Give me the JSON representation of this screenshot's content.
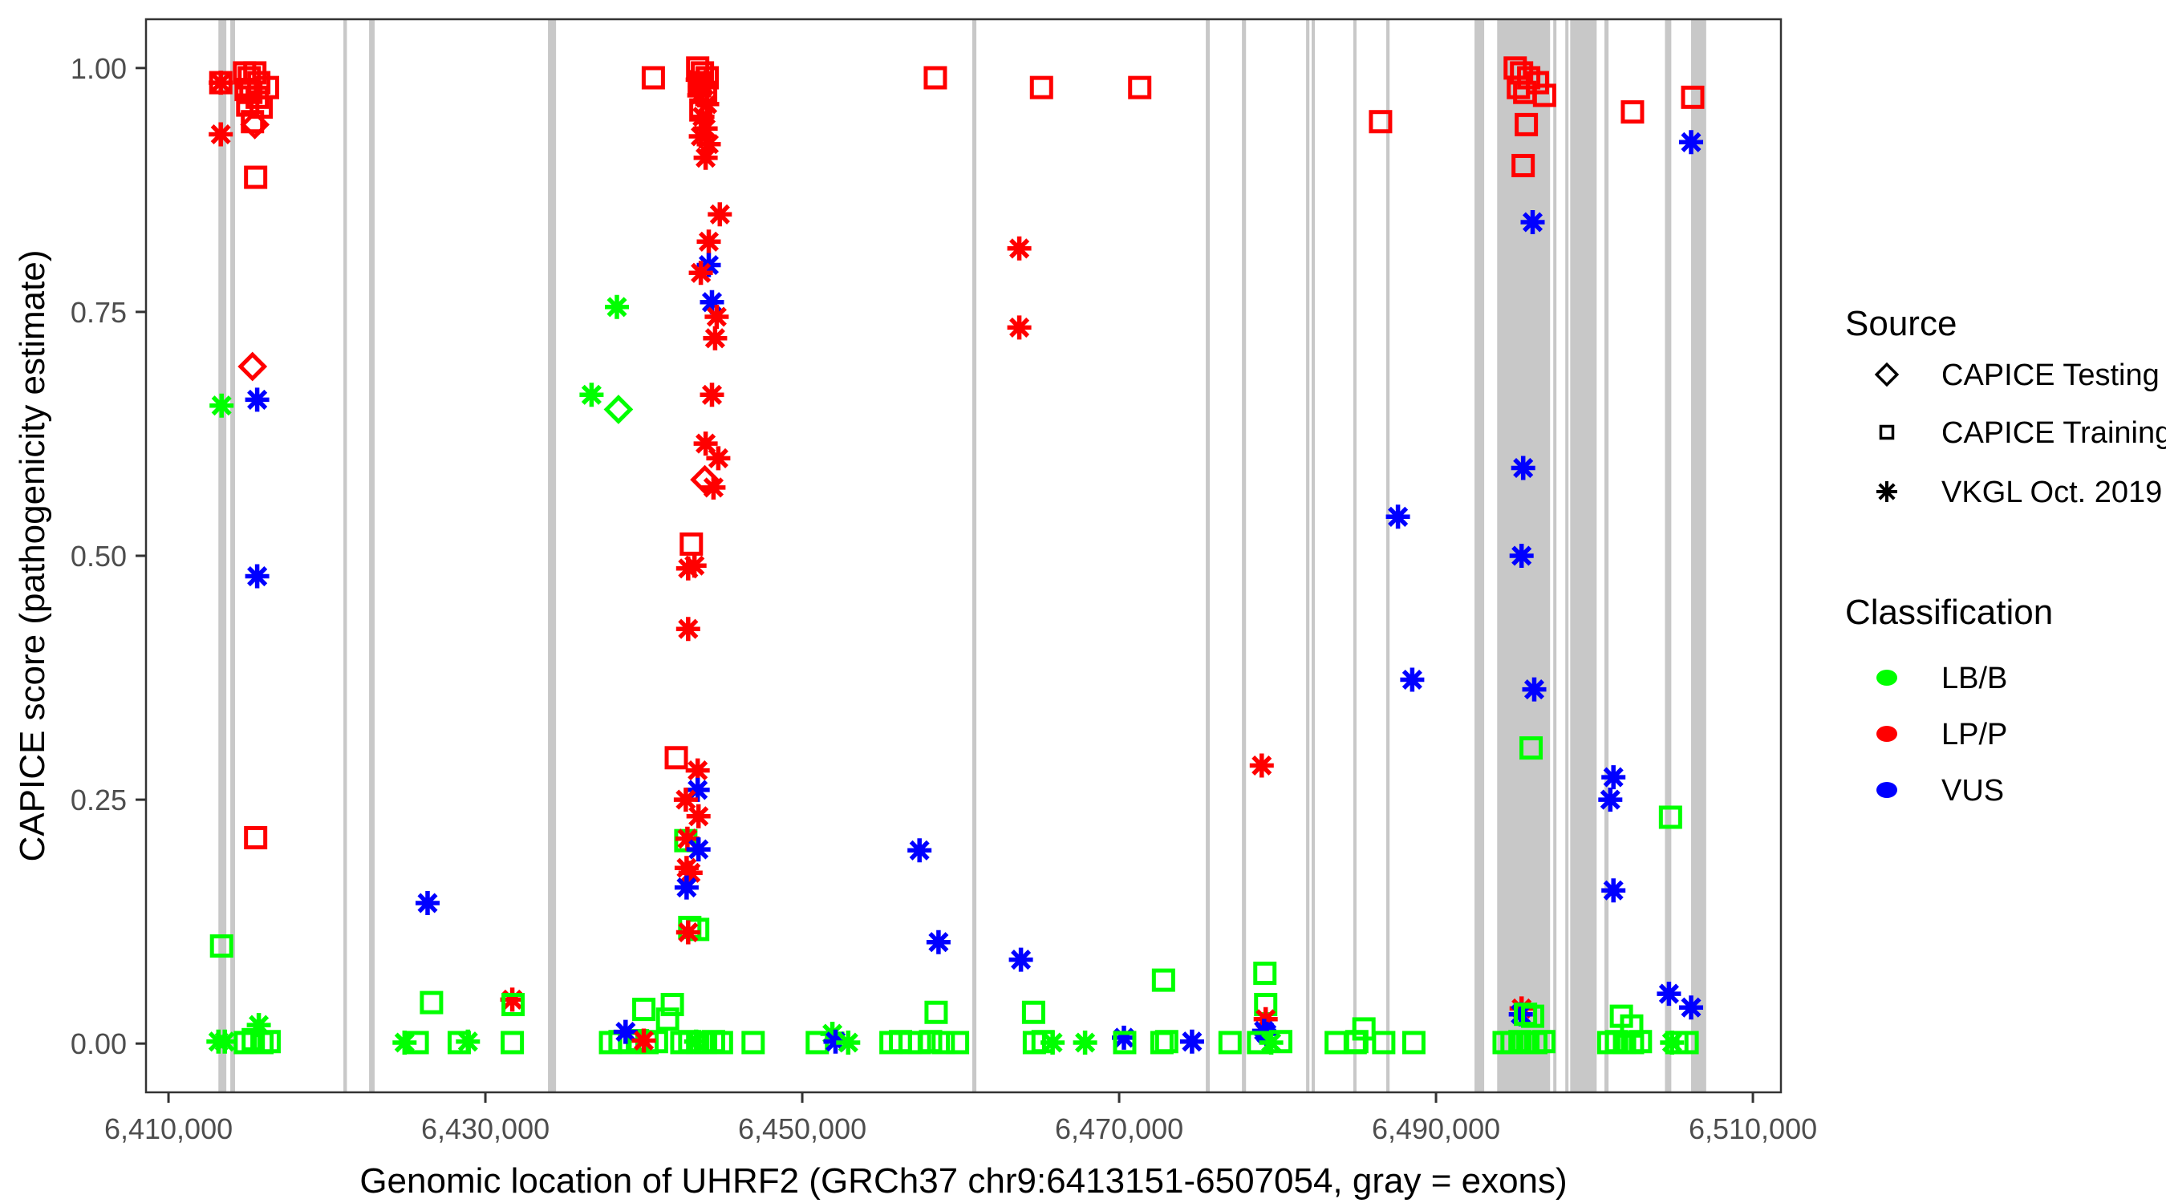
{
  "figure": {
    "background": "#ffffff",
    "panel_border_color": "#333333",
    "tick_color": "#333333",
    "tick_label_color": "#4d4d4d"
  },
  "legend": {
    "source": {
      "title": "Source",
      "items": [
        {
          "shape": "diamond",
          "code": "d",
          "label": "CAPICE Testing"
        },
        {
          "shape": "square",
          "code": "s",
          "label": "CAPICE Training"
        },
        {
          "shape": "asterisk",
          "code": "a",
          "label": "VKGL Oct. 2019"
        }
      ]
    },
    "classification": {
      "title": "Classification",
      "items": [
        {
          "code": "B",
          "label": "LB/B",
          "color": "#00FF00"
        },
        {
          "code": "P",
          "label": "LP/P",
          "color": "#FF0000"
        },
        {
          "code": "V",
          "label": "VUS",
          "color": "#0000FF"
        }
      ]
    }
  },
  "chart_data": {
    "type": "scatter",
    "title": "",
    "xlabel": "Genomic location of UHRF2 (GRCh37 chr9:6413151-6507054, gray = exons)",
    "ylabel": "CAPICE score (pathogenicity estimate)",
    "xlim": [
      6408580,
      6511770
    ],
    "ylim": [
      -0.05,
      1.05
    ],
    "grid": "off",
    "legend_position": "right",
    "x_ticks": [
      {
        "value": 6410000,
        "label": "6,410,000"
      },
      {
        "value": 6430000,
        "label": "6,430,000"
      },
      {
        "value": 6450000,
        "label": "6,450,000"
      },
      {
        "value": 6470000,
        "label": "6,470,000"
      },
      {
        "value": 6490000,
        "label": "6,490,000"
      },
      {
        "value": 6510000,
        "label": "6,510,000"
      }
    ],
    "y_ticks": [
      {
        "value": 0.0,
        "label": "0.00"
      },
      {
        "value": 0.25,
        "label": "0.25"
      },
      {
        "value": 0.5,
        "label": "0.50"
      },
      {
        "value": 0.75,
        "label": "0.75"
      },
      {
        "value": 1.0,
        "label": "1.00"
      }
    ],
    "exon_color": "#C8C8C8",
    "exons": [
      [
        6413150,
        6413650
      ],
      [
        6413900,
        6414200
      ],
      [
        6421040,
        6421260
      ],
      [
        6422660,
        6423010
      ],
      [
        6433950,
        6434460
      ],
      [
        6460730,
        6460990
      ],
      [
        6475470,
        6475720
      ],
      [
        6477750,
        6478010
      ],
      [
        6481800,
        6482010
      ],
      [
        6482150,
        6482310
      ],
      [
        6484780,
        6484940
      ],
      [
        6486860,
        6487070
      ],
      [
        6492430,
        6493040
      ],
      [
        6493860,
        6497200
      ],
      [
        6497400,
        6497560
      ],
      [
        6498160,
        6498320
      ],
      [
        6498470,
        6500140
      ],
      [
        6500630,
        6500890
      ],
      [
        6504450,
        6504850
      ],
      [
        6506100,
        6507054
      ]
    ],
    "class_colors": {
      "B": "#00FF00",
      "P": "#FF0000",
      "V": "#0000FF"
    },
    "class_labels": {
      "B": "LB/B",
      "P": "LP/P",
      "V": "VUS"
    },
    "source_labels": {
      "d": "CAPICE Testing",
      "s": "CAPICE Training",
      "a": "VKGL Oct. 2019"
    },
    "points_columns": [
      "genomic_position",
      "capice_score",
      "source",
      "classification"
    ],
    "points": [
      [
        6413300,
        0.985,
        "s",
        "P"
      ],
      [
        6413300,
        0.985,
        "a",
        "P"
      ],
      [
        6413300,
        0.932,
        "a",
        "P"
      ],
      [
        6414800,
        0.995,
        "s",
        "P"
      ],
      [
        6415100,
        0.99,
        "s",
        "P"
      ],
      [
        6415450,
        0.995,
        "s",
        "P"
      ],
      [
        6415700,
        0.985,
        "s",
        "P"
      ],
      [
        6415200,
        0.975,
        "s",
        "P"
      ],
      [
        6415600,
        0.97,
        "s",
        "P"
      ],
      [
        6415000,
        0.962,
        "s",
        "P"
      ],
      [
        6415850,
        0.96,
        "s",
        "P"
      ],
      [
        6416250,
        0.98,
        "s",
        "P"
      ],
      [
        6414900,
        0.978,
        "s",
        "P"
      ],
      [
        6415300,
        0.945,
        "s",
        "P"
      ],
      [
        6415450,
        0.942,
        "d",
        "P"
      ],
      [
        6415500,
        0.888,
        "s",
        "P"
      ],
      [
        6415300,
        0.694,
        "d",
        "P"
      ],
      [
        6415500,
        0.211,
        "s",
        "P"
      ],
      [
        6415600,
        0.66,
        "a",
        "V"
      ],
      [
        6415600,
        0.479,
        "a",
        "V"
      ],
      [
        6413350,
        0.654,
        "a",
        "B"
      ],
      [
        6413350,
        0.1,
        "s",
        "B"
      ],
      [
        6415700,
        0.019,
        "a",
        "B"
      ],
      [
        6413150,
        0.002,
        "a",
        "B"
      ],
      [
        6413550,
        0.002,
        "a",
        "B"
      ],
      [
        6414850,
        0.001,
        "s",
        "B"
      ],
      [
        6415350,
        0.004,
        "s",
        "B"
      ],
      [
        6415900,
        0.001,
        "s",
        "B"
      ],
      [
        6416350,
        0.002,
        "s",
        "B"
      ],
      [
        6424900,
        0.001,
        "a",
        "B"
      ],
      [
        6425700,
        0.001,
        "s",
        "B"
      ],
      [
        6426350,
        0.144,
        "a",
        "V"
      ],
      [
        6426600,
        0.042,
        "s",
        "B"
      ],
      [
        6428350,
        0.001,
        "s",
        "B"
      ],
      [
        6428900,
        0.002,
        "a",
        "B"
      ],
      [
        6431700,
        0.045,
        "a",
        "P"
      ],
      [
        6431750,
        0.04,
        "s",
        "B"
      ],
      [
        6431700,
        0.001,
        "s",
        "B"
      ],
      [
        6437900,
        0.001,
        "s",
        "B"
      ],
      [
        6438500,
        0.002,
        "s",
        "B"
      ],
      [
        6439100,
        0.001,
        "s",
        "B"
      ],
      [
        6439600,
        0.003,
        "s",
        "B"
      ],
      [
        6440200,
        0.001,
        "s",
        "B"
      ],
      [
        6440800,
        0.002,
        "s",
        "B"
      ],
      [
        6440000,
        0.035,
        "s",
        "B"
      ],
      [
        6441500,
        0.025,
        "s",
        "B"
      ],
      [
        6441800,
        0.04,
        "s",
        "B"
      ],
      [
        6438850,
        0.012,
        "a",
        "V"
      ],
      [
        6440000,
        0.003,
        "a",
        "P"
      ],
      [
        6442400,
        0.001,
        "s",
        "B"
      ],
      [
        6442900,
        0.002,
        "s",
        "B"
      ],
      [
        6443400,
        0.001,
        "s",
        "B"
      ],
      [
        6443900,
        0.001,
        "s",
        "B"
      ],
      [
        6444400,
        0.002,
        "s",
        "B"
      ],
      [
        6444900,
        0.001,
        "s",
        "B"
      ],
      [
        6443300,
        0.002,
        "a",
        "B"
      ],
      [
        6442900,
        0.119,
        "s",
        "B"
      ],
      [
        6436700,
        0.665,
        "a",
        "B"
      ],
      [
        6438300,
        0.755,
        "a",
        "B"
      ],
      [
        6438400,
        0.65,
        "d",
        "B"
      ],
      [
        6440600,
        0.99,
        "s",
        "P"
      ],
      [
        6443400,
        1.0,
        "s",
        "P"
      ],
      [
        6443700,
        0.995,
        "s",
        "P"
      ],
      [
        6444000,
        0.99,
        "s",
        "P"
      ],
      [
        6443500,
        0.985,
        "s",
        "P"
      ],
      [
        6443900,
        0.975,
        "s",
        "P"
      ],
      [
        6443600,
        0.957,
        "s",
        "P"
      ],
      [
        6443400,
        0.988,
        "a",
        "P"
      ],
      [
        6443800,
        0.982,
        "a",
        "P"
      ],
      [
        6443500,
        0.972,
        "a",
        "P"
      ],
      [
        6444000,
        0.963,
        "a",
        "P"
      ],
      [
        6443700,
        0.95,
        "a",
        "P"
      ],
      [
        6443900,
        0.938,
        "a",
        "P"
      ],
      [
        6443600,
        0.93,
        "a",
        "P"
      ],
      [
        6444100,
        0.922,
        "a",
        "P"
      ],
      [
        6443900,
        0.908,
        "a",
        "P"
      ],
      [
        6444800,
        0.85,
        "a",
        "P"
      ],
      [
        6444100,
        0.822,
        "a",
        "P"
      ],
      [
        6444100,
        0.798,
        "a",
        "V"
      ],
      [
        6443600,
        0.79,
        "a",
        "P"
      ],
      [
        6444300,
        0.76,
        "a",
        "V"
      ],
      [
        6444600,
        0.745,
        "a",
        "P"
      ],
      [
        6444500,
        0.723,
        "a",
        "P"
      ],
      [
        6444300,
        0.665,
        "a",
        "P"
      ],
      [
        6443900,
        0.615,
        "a",
        "P"
      ],
      [
        6444700,
        0.6,
        "a",
        "P"
      ],
      [
        6443850,
        0.578,
        "d",
        "P"
      ],
      [
        6444400,
        0.57,
        "a",
        "P"
      ],
      [
        6443000,
        0.512,
        "s",
        "P"
      ],
      [
        6443200,
        0.49,
        "a",
        "P"
      ],
      [
        6442800,
        0.487,
        "a",
        "P"
      ],
      [
        6442800,
        0.425,
        "a",
        "P"
      ],
      [
        6442050,
        0.293,
        "s",
        "P"
      ],
      [
        6443400,
        0.28,
        "a",
        "P"
      ],
      [
        6443400,
        0.26,
        "a",
        "V"
      ],
      [
        6442650,
        0.25,
        "a",
        "P"
      ],
      [
        6443450,
        0.233,
        "a",
        "P"
      ],
      [
        6442650,
        0.208,
        "s",
        "B"
      ],
      [
        6442750,
        0.21,
        "a",
        "P"
      ],
      [
        6443450,
        0.199,
        "a",
        "V"
      ],
      [
        6442700,
        0.18,
        "a",
        "P"
      ],
      [
        6442950,
        0.175,
        "a",
        "P"
      ],
      [
        6442700,
        0.16,
        "a",
        "V"
      ],
      [
        6443400,
        0.117,
        "s",
        "B"
      ],
      [
        6442800,
        0.114,
        "a",
        "P"
      ],
      [
        6446900,
        0.001,
        "s",
        "B"
      ],
      [
        6450950,
        0.001,
        "s",
        "B"
      ],
      [
        6451900,
        0.01,
        "a",
        "B"
      ],
      [
        6452100,
        0.002,
        "a",
        "V"
      ],
      [
        6452900,
        0.001,
        "a",
        "B"
      ],
      [
        6455600,
        0.001,
        "s",
        "B"
      ],
      [
        6456200,
        0.002,
        "s",
        "B"
      ],
      [
        6456800,
        0.001,
        "s",
        "B"
      ],
      [
        6457400,
        0.001,
        "s",
        "B"
      ],
      [
        6458100,
        0.002,
        "s",
        "B"
      ],
      [
        6458900,
        0.001,
        "s",
        "B"
      ],
      [
        6458450,
        0.032,
        "s",
        "B"
      ],
      [
        6459800,
        0.001,
        "s",
        "B"
      ],
      [
        6458400,
        0.99,
        "s",
        "P"
      ],
      [
        6457400,
        0.198,
        "a",
        "V"
      ],
      [
        6458600,
        0.104,
        "a",
        "V"
      ],
      [
        6465100,
        0.98,
        "s",
        "P"
      ],
      [
        6463700,
        0.815,
        "a",
        "P"
      ],
      [
        6463700,
        0.734,
        "a",
        "P"
      ],
      [
        6463800,
        0.086,
        "a",
        "V"
      ],
      [
        6464600,
        0.032,
        "s",
        "B"
      ],
      [
        6464650,
        0.001,
        "s",
        "B"
      ],
      [
        6465200,
        0.002,
        "s",
        "B"
      ],
      [
        6465800,
        0.001,
        "a",
        "B"
      ],
      [
        6467850,
        0.001,
        "a",
        "B"
      ],
      [
        6470300,
        0.006,
        "a",
        "V"
      ],
      [
        6470350,
        0.001,
        "s",
        "B"
      ],
      [
        6471300,
        0.98,
        "s",
        "P"
      ],
      [
        6472700,
        0.001,
        "s",
        "B"
      ],
      [
        6473000,
        0.002,
        "s",
        "B"
      ],
      [
        6472800,
        0.065,
        "s",
        "B"
      ],
      [
        6474600,
        0.002,
        "a",
        "V"
      ],
      [
        6477000,
        0.001,
        "s",
        "B"
      ],
      [
        6479000,
        0.285,
        "a",
        "P"
      ],
      [
        6479200,
        0.072,
        "s",
        "B"
      ],
      [
        6479250,
        0.04,
        "s",
        "B"
      ],
      [
        6479250,
        0.025,
        "a",
        "P"
      ],
      [
        6479150,
        0.013,
        "a",
        "V"
      ],
      [
        6479300,
        0.01,
        "a",
        "V"
      ],
      [
        6478800,
        0.001,
        "s",
        "B"
      ],
      [
        6479600,
        0.001,
        "a",
        "B"
      ],
      [
        6480200,
        0.002,
        "s",
        "B"
      ],
      [
        6483700,
        0.001,
        "s",
        "B"
      ],
      [
        6484900,
        0.001,
        "s",
        "B"
      ],
      [
        6485000,
        0.002,
        "s",
        "B"
      ],
      [
        6485450,
        0.015,
        "s",
        "B"
      ],
      [
        6486700,
        0.001,
        "s",
        "B"
      ],
      [
        6488600,
        0.001,
        "s",
        "B"
      ],
      [
        6486500,
        0.945,
        "s",
        "P"
      ],
      [
        6487600,
        0.54,
        "a",
        "V"
      ],
      [
        6488500,
        0.373,
        "a",
        "V"
      ],
      [
        6495000,
        1.0,
        "s",
        "P"
      ],
      [
        6495400,
        0.995,
        "s",
        "P"
      ],
      [
        6495850,
        0.99,
        "s",
        "P"
      ],
      [
        6495200,
        0.98,
        "s",
        "P"
      ],
      [
        6495600,
        0.975,
        "s",
        "P"
      ],
      [
        6496400,
        0.985,
        "s",
        "P"
      ],
      [
        6496850,
        0.972,
        "s",
        "P"
      ],
      [
        6495700,
        0.942,
        "s",
        "P"
      ],
      [
        6495500,
        0.9,
        "s",
        "P"
      ],
      [
        6496100,
        0.842,
        "a",
        "V"
      ],
      [
        6495500,
        0.59,
        "a",
        "V"
      ],
      [
        6495400,
        0.5,
        "a",
        "V"
      ],
      [
        6496200,
        0.363,
        "a",
        "V"
      ],
      [
        6496000,
        0.303,
        "s",
        "B"
      ],
      [
        6495400,
        0.036,
        "a",
        "P"
      ],
      [
        6495350,
        0.03,
        "a",
        "V"
      ],
      [
        6495650,
        0.03,
        "s",
        "B"
      ],
      [
        6496100,
        0.028,
        "s",
        "B"
      ],
      [
        6494300,
        0.001,
        "s",
        "B"
      ],
      [
        6494800,
        0.001,
        "s",
        "B"
      ],
      [
        6495300,
        0.002,
        "s",
        "B"
      ],
      [
        6495800,
        0.001,
        "s",
        "B"
      ],
      [
        6496300,
        0.001,
        "s",
        "B"
      ],
      [
        6496800,
        0.002,
        "s",
        "B"
      ],
      [
        6500900,
        0.001,
        "s",
        "B"
      ],
      [
        6501400,
        0.002,
        "s",
        "B"
      ],
      [
        6501900,
        0.001,
        "s",
        "B"
      ],
      [
        6502400,
        0.001,
        "s",
        "B"
      ],
      [
        6502900,
        0.002,
        "s",
        "B"
      ],
      [
        6501700,
        0.028,
        "s",
        "B"
      ],
      [
        6502350,
        0.018,
        "s",
        "B"
      ],
      [
        6501200,
        0.273,
        "a",
        "V"
      ],
      [
        6501000,
        0.25,
        "a",
        "V"
      ],
      [
        6501200,
        0.157,
        "a",
        "V"
      ],
      [
        6502400,
        0.955,
        "s",
        "P"
      ],
      [
        6504800,
        0.232,
        "s",
        "B"
      ],
      [
        6504700,
        0.051,
        "a",
        "V"
      ],
      [
        6506100,
        0.037,
        "a",
        "V"
      ],
      [
        6504900,
        0.001,
        "a",
        "B"
      ],
      [
        6505200,
        0.001,
        "s",
        "B"
      ],
      [
        6505850,
        0.001,
        "s",
        "B"
      ],
      [
        6506200,
        0.97,
        "s",
        "P"
      ],
      [
        6506100,
        0.924,
        "a",
        "V"
      ]
    ]
  }
}
